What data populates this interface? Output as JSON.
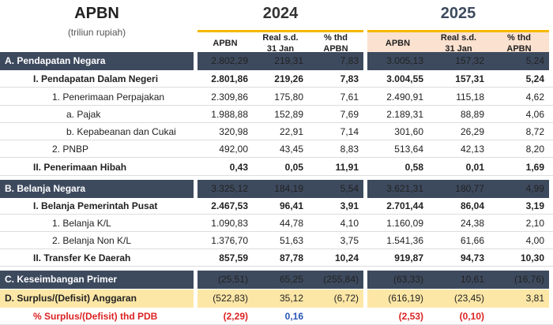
{
  "header": {
    "title": "APBN",
    "unit": "(triliun rupiah)",
    "years": [
      "2024",
      "2025"
    ],
    "columns": [
      [
        "APBN",
        ""
      ],
      [
        "Real s.d.",
        "31 Jan"
      ],
      [
        "% thd",
        "APBN"
      ]
    ]
  },
  "colors": {
    "dark_row": "#3d4a5e",
    "highlight_row": "#fde7a6",
    "accent_line": "#f5b800",
    "header_2025_bg": "#fbe1cf"
  },
  "rows": [
    {
      "label": "A. Pendapatan Negara",
      "style": "dark",
      "indent": 0,
      "v": [
        "2.802,29",
        "219,31",
        "7,83",
        "3.005,13",
        "157,32",
        "5,24"
      ]
    },
    {
      "label": "I.  Pendapatan Dalam Negeri",
      "style": "bold",
      "indent": 1,
      "v": [
        "2.801,86",
        "219,26",
        "7,83",
        "3.004,55",
        "157,31",
        "5,24"
      ]
    },
    {
      "label": "1. Penerimaan Perpajakan",
      "style": "",
      "indent": 2,
      "v": [
        "2.309,86",
        "175,80",
        "7,61",
        "2.490,91",
        "115,18",
        "4,62"
      ]
    },
    {
      "label": "a.    Pajak",
      "style": "",
      "indent": 3,
      "v": [
        "1.988,88",
        "152,89",
        "7,69",
        "2.189,31",
        "88,89",
        "4,06"
      ]
    },
    {
      "label": "b.    Kepabeanan dan Cukai",
      "style": "",
      "indent": 3,
      "v": [
        "320,98",
        "22,91",
        "7,14",
        "301,60",
        "26,29",
        "8,72"
      ]
    },
    {
      "label": "2. PNBP",
      "style": "",
      "indent": 2,
      "v": [
        "492,00",
        "43,45",
        "8,83",
        "513,64",
        "42,13",
        "8,20"
      ]
    },
    {
      "label": "II. Penerimaan Hibah",
      "style": "bold",
      "indent": 1,
      "v": [
        "0,43",
        "0,05",
        "11,91",
        "0,58",
        "0,01",
        "1,69"
      ]
    },
    {
      "label": "B. Belanja Negara",
      "style": "dark",
      "indent": 0,
      "v": [
        "3.325,12",
        "184,19",
        "5,54",
        "3.621,31",
        "180,77",
        "4,99"
      ]
    },
    {
      "label": "I.  Belanja Pemerintah Pusat",
      "style": "bold",
      "indent": 1,
      "v": [
        "2.467,53",
        "96,41",
        "3,91",
        "2.701,44",
        "86,04",
        "3,19"
      ]
    },
    {
      "label": "1. Belanja K/L",
      "style": "",
      "indent": 2,
      "v": [
        "1.090,83",
        "44,78",
        "4,10",
        "1.160,09",
        "24,38",
        "2,10"
      ]
    },
    {
      "label": "2. Belanja Non K/L",
      "style": "",
      "indent": 2,
      "v": [
        "1.376,70",
        "51,63",
        "3,75",
        "1.541,36",
        "61,66",
        "4,00"
      ]
    },
    {
      "label": "II. Transfer Ke Daerah",
      "style": "bold",
      "indent": 1,
      "v": [
        "857,59",
        "87,78",
        "10,24",
        "919,87",
        "94,73",
        "10,30"
      ]
    },
    {
      "label": "C. Keseimbangan Primer",
      "style": "dark",
      "indent": 0,
      "v": [
        "(25,51)",
        "65,25",
        "(255,84)",
        "(63,33)",
        "10,61",
        "(16,76)"
      ]
    },
    {
      "label": "D. Surplus/(Defisit) Anggaran",
      "style": "yel",
      "indent": 0,
      "v": [
        "(522,83)",
        "35,12",
        "(6,72)",
        "(616,19)",
        "(23,45)",
        "3,81"
      ]
    },
    {
      "label": "% Surplus/(Defisit) thd PDB",
      "style": "pct",
      "indent": 1,
      "v": [
        "(2,29)",
        "0,16",
        "",
        "(2,53)",
        "(0,10)",
        ""
      ]
    }
  ]
}
